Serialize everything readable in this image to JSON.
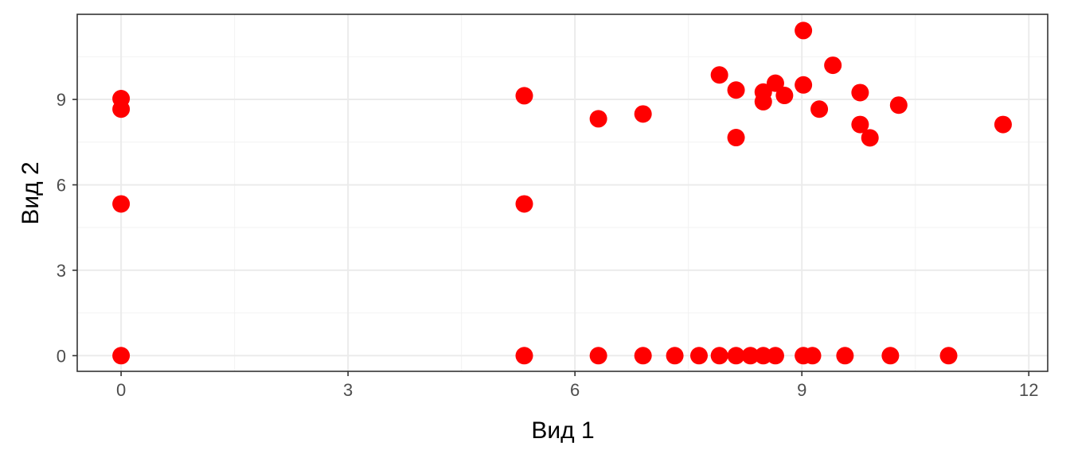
{
  "chart_data": {
    "type": "scatter",
    "title": "",
    "xlabel": "Вид 1",
    "ylabel": "Вид 2",
    "xlim": [
      -0.58,
      12.25
    ],
    "ylim": [
      -0.55,
      11.99
    ],
    "x_ticks": [
      0,
      3,
      6,
      9,
      12
    ],
    "y_ticks": [
      0,
      3,
      6,
      9
    ],
    "grid": true,
    "legend": "none",
    "point_color": "#ff0000",
    "series": [
      {
        "x": [
          0,
          0,
          0,
          0,
          5.33,
          5.33,
          5.33,
          6.31,
          6.31,
          6.9,
          6.9,
          7.32,
          7.64,
          7.91,
          7.91,
          8.13,
          8.13,
          8.13,
          8.32,
          8.49,
          8.49,
          8.49,
          8.65,
          8.65,
          8.77,
          9.02,
          9.02,
          9.02,
          9.14,
          9.23,
          9.41,
          9.57,
          9.77,
          9.77,
          9.9,
          10.17,
          10.28,
          10.94,
          11.66
        ],
        "y": [
          9.03,
          8.66,
          5.33,
          0,
          9.13,
          5.33,
          0,
          8.32,
          0,
          8.49,
          0,
          0,
          0,
          9.86,
          0,
          9.33,
          7.66,
          0,
          0,
          9.26,
          8.92,
          0,
          9.57,
          0,
          9.14,
          11.42,
          9.51,
          0,
          0,
          8.66,
          10.2,
          0,
          9.24,
          8.12,
          7.65,
          0,
          8.8,
          0,
          8.12
        ]
      }
    ]
  }
}
